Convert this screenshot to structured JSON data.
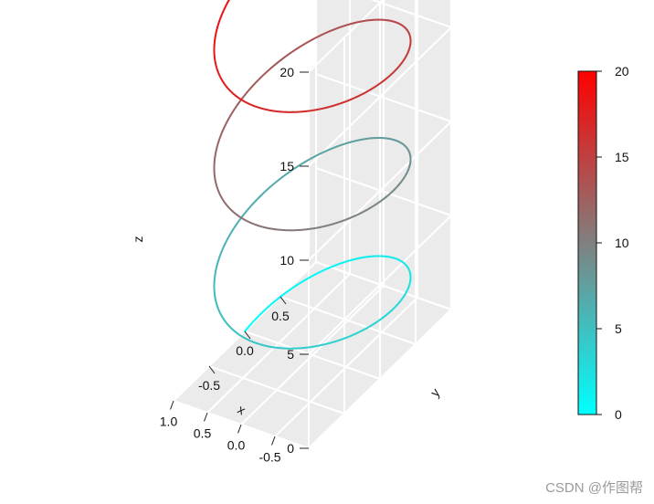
{
  "chart_data": {
    "type": "line3d",
    "title": "",
    "curve": {
      "kind": "helix",
      "x": "cos(t)",
      "y": "sin(t)",
      "z": "t",
      "t_range": [
        0,
        20
      ],
      "color_by": "z"
    },
    "axes": {
      "x": {
        "label": "x",
        "ticks": [
          -0.5,
          0.0,
          0.5,
          1.0
        ],
        "tick_labels": [
          "-0.5",
          "0.0",
          "0.5",
          "1.0"
        ],
        "range": [
          -1,
          1
        ]
      },
      "y": {
        "label": "y",
        "ticks": [
          -0.5,
          0.0,
          0.5
        ],
        "tick_labels": [
          "-0.5",
          "0.0",
          "0.5"
        ],
        "range": [
          -1,
          1
        ]
      },
      "z": {
        "label": "z",
        "ticks": [
          0,
          5,
          10,
          15,
          20
        ],
        "tick_labels": [
          "0",
          "5",
          "10",
          "15",
          "20"
        ],
        "range": [
          0,
          20
        ]
      }
    },
    "colorbar": {
      "range": [
        0,
        20
      ],
      "ticks": [
        0,
        5,
        10,
        15,
        20
      ],
      "tick_labels": [
        "0",
        "5",
        "10",
        "15",
        "20"
      ],
      "colors": [
        "#00ffff",
        "#808080",
        "#ff0000"
      ]
    },
    "panel_color": "#ebebeb",
    "grid_color": "#ffffff",
    "grid": true
  },
  "watermark": "CSDN @作图帮"
}
